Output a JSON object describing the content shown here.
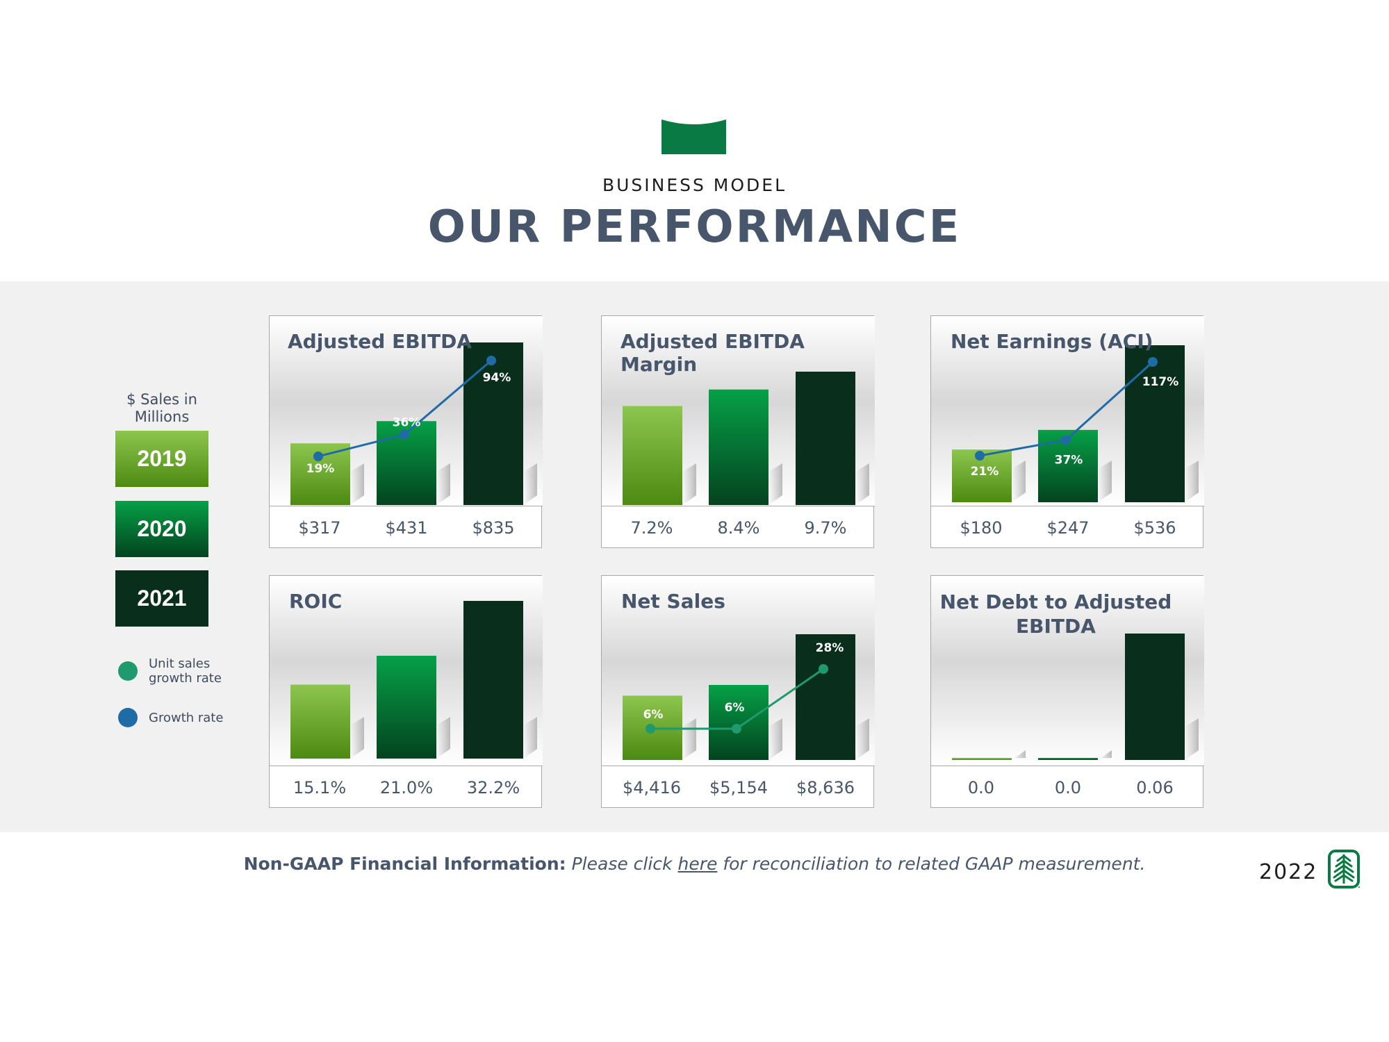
{
  "header": {
    "eyebrow": "BUSINESS MODEL",
    "title": "OUR PERFORMANCE",
    "logo_icon": "banner-logo-icon"
  },
  "legend": {
    "caption": "$ Sales in Millions",
    "years": [
      "2019",
      "2020",
      "2021"
    ],
    "unit_sales_growth_label": "Unit sales growth rate",
    "growth_rate_label": "Growth rate"
  },
  "colors": {
    "y2019_top": "#8dc64e",
    "y2019_bottom": "#4d8a12",
    "y2020_top": "#06a047",
    "y2020_bottom": "#04431f",
    "y2021": "#0a2e1c",
    "growth_rate": "#1f6ba5",
    "unit_sales_growth": "#1e9a6e",
    "brand_green": "#0a7a44",
    "text": "#47566b"
  },
  "footer": {
    "note_lead": "Non-GAAP Financial Information:",
    "note_before_link": "Please click",
    "link_text": "here",
    "note_after_link": "for reconciliation to related GAAP measurement.",
    "year": "2022",
    "tree_icon": "evergreen-tree-logo-icon"
  },
  "chart_data": [
    {
      "type": "bar",
      "title": "Adjusted EBITDA",
      "categories": [
        "2019",
        "2020",
        "2021"
      ],
      "values": [
        317,
        431,
        835
      ],
      "value_labels": [
        "$317",
        "$431",
        "$835"
      ],
      "growth": {
        "legend": "Growth rate",
        "values": [
          19,
          36,
          94
        ],
        "labels": [
          "19%",
          "36%",
          "94%"
        ]
      }
    },
    {
      "type": "bar",
      "title": "Adjusted EBITDA Margin",
      "categories": [
        "2019",
        "2020",
        "2021"
      ],
      "values": [
        7.2,
        8.4,
        9.7
      ],
      "value_labels": [
        "7.2%",
        "8.4%",
        "9.7%"
      ]
    },
    {
      "type": "bar",
      "title": "Net Earnings (ACI)",
      "categories": [
        "2019",
        "2020",
        "2021"
      ],
      "values": [
        180,
        247,
        536
      ],
      "value_labels": [
        "$180",
        "$247",
        "$536"
      ],
      "growth": {
        "legend": "Growth rate",
        "values": [
          21,
          37,
          117
        ],
        "labels": [
          "21%",
          "37%",
          "117%"
        ]
      }
    },
    {
      "type": "bar",
      "title": "ROIC",
      "categories": [
        "2019",
        "2020",
        "2021"
      ],
      "values": [
        15.1,
        21.0,
        32.2
      ],
      "value_labels": [
        "15.1%",
        "21.0%",
        "32.2%"
      ]
    },
    {
      "type": "bar",
      "title": "Net Sales",
      "categories": [
        "2019",
        "2020",
        "2021"
      ],
      "values": [
        4416,
        5154,
        8636
      ],
      "value_labels": [
        "$4,416",
        "$5,154",
        "$8,636"
      ],
      "growth": {
        "legend": "Unit sales growth rate",
        "values": [
          6,
          6,
          28
        ],
        "labels": [
          "6%",
          "6%",
          "28%"
        ]
      }
    },
    {
      "type": "bar",
      "title": "Net Debt to Adjusted EBITDA",
      "categories": [
        "2019",
        "2020",
        "2021"
      ],
      "values": [
        0.0,
        0.0,
        0.06
      ],
      "value_labels": [
        "0.0",
        "0.0",
        "0.06"
      ]
    }
  ]
}
